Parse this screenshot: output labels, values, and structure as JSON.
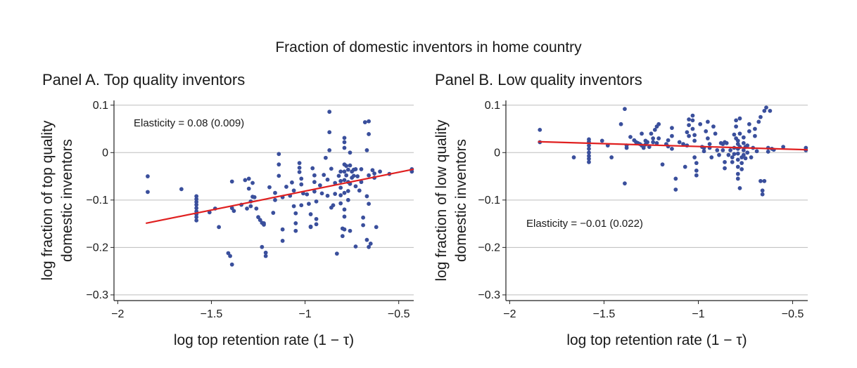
{
  "figure_title": "Fraction of domestic inventors in home country",
  "colors": {
    "points": "#3a4f9c",
    "fit_line": "#e02020",
    "grid": "#bdbdbd",
    "axis": "#222222"
  },
  "chart_data": [
    {
      "type": "scatter",
      "title": "Panel A. Top quality inventors",
      "xlabel": "log top retention rate (1 − τ)",
      "ylabel_lines": [
        "log fraction of top quality",
        "domestic inventors"
      ],
      "xlim": [
        -2.02,
        -0.42
      ],
      "ylim": [
        -0.312,
        0.11
      ],
      "xticks": [
        -2,
        -1.5,
        -1,
        -0.5
      ],
      "xtick_labels": [
        "−2",
        "−1.5",
        "−1",
        "−0.5"
      ],
      "yticks": [
        0.1,
        0,
        -0.1,
        -0.2,
        -0.3
      ],
      "ytick_labels": [
        "0.1",
        "0",
        "−0.1",
        "−0.2",
        "−0.3"
      ],
      "grid": "horizontal",
      "annotation": "Elasticity = 0.08 (0.009)",
      "annotation_pos": "top-left",
      "fit_line": {
        "x": [
          -1.85,
          -0.42
        ],
        "y": [
          -0.149,
          -0.035
        ]
      },
      "points": [
        [
          -1.84,
          -0.05
        ],
        [
          -1.84,
          -0.083
        ],
        [
          -1.66,
          -0.077
        ],
        [
          -1.58,
          -0.092
        ],
        [
          -1.58,
          -0.098
        ],
        [
          -1.58,
          -0.104
        ],
        [
          -1.58,
          -0.11
        ],
        [
          -1.58,
          -0.117
        ],
        [
          -1.58,
          -0.124
        ],
        [
          -1.58,
          -0.13
        ],
        [
          -1.58,
          -0.136
        ],
        [
          -1.58,
          -0.143
        ],
        [
          -1.51,
          -0.126
        ],
        [
          -1.48,
          -0.118
        ],
        [
          -1.46,
          -0.157
        ],
        [
          -1.41,
          -0.212
        ],
        [
          -1.4,
          -0.218
        ],
        [
          -1.39,
          -0.236
        ],
        [
          -1.39,
          -0.061
        ],
        [
          -1.39,
          -0.117
        ],
        [
          -1.38,
          -0.123
        ],
        [
          -1.34,
          -0.11
        ],
        [
          -1.32,
          -0.058
        ],
        [
          -1.3,
          -0.055
        ],
        [
          -1.3,
          -0.076
        ],
        [
          -1.31,
          -0.118
        ],
        [
          -1.29,
          -0.103
        ],
        [
          -1.29,
          -0.113
        ],
        [
          -1.28,
          -0.064
        ],
        [
          -1.28,
          -0.093
        ],
        [
          -1.27,
          -0.094
        ],
        [
          -1.26,
          -0.118
        ],
        [
          -1.25,
          -0.136
        ],
        [
          -1.24,
          -0.142
        ],
        [
          -1.23,
          -0.148
        ],
        [
          -1.22,
          -0.149
        ],
        [
          -1.22,
          -0.152
        ],
        [
          -1.23,
          -0.199
        ],
        [
          -1.21,
          -0.211
        ],
        [
          -1.21,
          -0.218
        ],
        [
          -1.19,
          -0.073
        ],
        [
          -1.17,
          -0.127
        ],
        [
          -1.16,
          -0.1
        ],
        [
          -1.16,
          -0.085
        ],
        [
          -1.14,
          -0.025
        ],
        [
          -1.14,
          -0.049
        ],
        [
          -1.14,
          -0.003
        ],
        [
          -1.12,
          -0.094
        ],
        [
          -1.12,
          -0.162
        ],
        [
          -1.12,
          -0.186
        ],
        [
          -1.1,
          -0.072
        ],
        [
          -1.08,
          -0.091
        ],
        [
          -1.07,
          -0.063
        ],
        [
          -1.06,
          -0.08
        ],
        [
          -1.06,
          -0.113
        ],
        [
          -1.05,
          -0.128
        ],
        [
          -1.05,
          -0.149
        ],
        [
          -1.05,
          -0.165
        ],
        [
          -1.03,
          -0.022
        ],
        [
          -1.03,
          -0.032
        ],
        [
          -1.03,
          -0.041
        ],
        [
          -1.02,
          -0.055
        ],
        [
          -1.02,
          -0.067
        ],
        [
          -1.01,
          -0.086
        ],
        [
          -1.02,
          -0.111
        ],
        [
          -0.99,
          -0.088
        ],
        [
          -0.98,
          -0.108
        ],
        [
          -0.97,
          -0.13
        ],
        [
          -0.97,
          -0.156
        ],
        [
          -0.97,
          -0.157
        ],
        [
          -0.96,
          -0.033
        ],
        [
          -0.95,
          -0.048
        ],
        [
          -0.95,
          -0.062
        ],
        [
          -0.95,
          -0.082
        ],
        [
          -0.94,
          -0.103
        ],
        [
          -0.94,
          -0.14
        ],
        [
          -0.94,
          -0.151
        ],
        [
          -0.92,
          -0.069
        ],
        [
          -0.91,
          -0.086
        ],
        [
          -0.9,
          -0.047
        ],
        [
          -0.89,
          -0.011
        ],
        [
          -0.88,
          -0.057
        ],
        [
          -0.88,
          -0.091
        ],
        [
          -0.87,
          0.086
        ],
        [
          -0.87,
          0.043
        ],
        [
          -0.87,
          0.005
        ],
        [
          -0.86,
          -0.034
        ],
        [
          -0.86,
          -0.116
        ],
        [
          -0.85,
          -0.111
        ],
        [
          -0.84,
          -0.064
        ],
        [
          -0.84,
          -0.087
        ],
        [
          -0.83,
          -0.213
        ],
        [
          -0.82,
          -0.049
        ],
        [
          -0.81,
          -0.04
        ],
        [
          -0.81,
          -0.06
        ],
        [
          -0.81,
          -0.074
        ],
        [
          -0.81,
          -0.09
        ],
        [
          -0.81,
          -0.107
        ],
        [
          -0.8,
          -0.16
        ],
        [
          -0.8,
          -0.176
        ],
        [
          -0.79,
          0.031
        ],
        [
          -0.79,
          0.022
        ],
        [
          -0.79,
          0.01
        ],
        [
          -0.79,
          -0.025
        ],
        [
          -0.79,
          -0.04
        ],
        [
          -0.79,
          -0.058
        ],
        [
          -0.79,
          -0.085
        ],
        [
          -0.79,
          -0.12
        ],
        [
          -0.79,
          -0.135
        ],
        [
          -0.79,
          -0.162
        ],
        [
          -0.78,
          -0.028
        ],
        [
          -0.78,
          -0.048
        ],
        [
          -0.77,
          -0.036
        ],
        [
          -0.77,
          -0.062
        ],
        [
          -0.77,
          -0.081
        ],
        [
          -0.77,
          -0.1
        ],
        [
          -0.76,
          -0.027
        ],
        [
          -0.76,
          0.0
        ],
        [
          -0.76,
          -0.066
        ],
        [
          -0.76,
          -0.165
        ],
        [
          -0.75,
          -0.04
        ],
        [
          -0.75,
          -0.053
        ],
        [
          -0.74,
          -0.036
        ],
        [
          -0.74,
          -0.049
        ],
        [
          -0.73,
          -0.035
        ],
        [
          -0.73,
          -0.071
        ],
        [
          -0.73,
          -0.198
        ],
        [
          -0.72,
          -0.05
        ],
        [
          -0.71,
          -0.08
        ],
        [
          -0.7,
          -0.035
        ],
        [
          -0.7,
          -0.062
        ],
        [
          -0.69,
          -0.137
        ],
        [
          -0.69,
          -0.153
        ],
        [
          -0.68,
          0.064
        ],
        [
          -0.67,
          0.005
        ],
        [
          -0.67,
          -0.092
        ],
        [
          -0.66,
          0.066
        ],
        [
          -0.66,
          0.039
        ],
        [
          -0.66,
          -0.048
        ],
        [
          -0.66,
          -0.108
        ],
        [
          -0.67,
          -0.184
        ],
        [
          -0.66,
          -0.199
        ],
        [
          -0.65,
          -0.192
        ],
        [
          -0.64,
          -0.037
        ],
        [
          -0.63,
          -0.044
        ],
        [
          -0.63,
          -0.053
        ],
        [
          -0.62,
          -0.157
        ],
        [
          -0.6,
          -0.04
        ],
        [
          -0.55,
          -0.045
        ],
        [
          -0.43,
          -0.035
        ],
        [
          -0.43,
          -0.04
        ]
      ]
    },
    {
      "type": "scatter",
      "title": "Panel B. Low quality inventors",
      "xlabel": "log top retention rate (1 − τ)",
      "ylabel_lines": [
        "log fraction of low quality",
        "domestic inventors"
      ],
      "xlim": [
        -2.02,
        -0.42
      ],
      "ylim": [
        -0.312,
        0.11
      ],
      "xticks": [
        -2,
        -1.5,
        -1,
        -0.5
      ],
      "xtick_labels": [
        "−2",
        "−1.5",
        "−1",
        "−0.5"
      ],
      "yticks": [
        0.1,
        0,
        -0.1,
        -0.2,
        -0.3
      ],
      "ytick_labels": [
        "0.1",
        "0",
        "−0.1",
        "−0.2",
        "−0.3"
      ],
      "grid": "horizontal",
      "annotation": "Elasticity = −0.01 (0.022)",
      "annotation_pos": "lower-left",
      "fit_line": {
        "x": [
          -1.85,
          -0.42
        ],
        "y": [
          0.023,
          0.006
        ]
      },
      "points": [
        [
          -1.84,
          0.048
        ],
        [
          -1.84,
          0.022
        ],
        [
          -1.66,
          -0.01
        ],
        [
          -1.58,
          0.028
        ],
        [
          -1.58,
          0.023
        ],
        [
          -1.58,
          0.015
        ],
        [
          -1.58,
          0.008
        ],
        [
          -1.58,
          0.0
        ],
        [
          -1.58,
          -0.007
        ],
        [
          -1.58,
          -0.013
        ],
        [
          -1.58,
          -0.02
        ],
        [
          -1.51,
          0.025
        ],
        [
          -1.48,
          0.015
        ],
        [
          -1.46,
          -0.01
        ],
        [
          -1.41,
          0.06
        ],
        [
          -1.39,
          0.092
        ],
        [
          -1.38,
          0.015
        ],
        [
          -1.39,
          -0.065
        ],
        [
          -1.38,
          0.01
        ],
        [
          -1.36,
          0.033
        ],
        [
          -1.34,
          0.026
        ],
        [
          -1.33,
          0.022
        ],
        [
          -1.32,
          0.02
        ],
        [
          -1.31,
          0.018
        ],
        [
          -1.3,
          0.04
        ],
        [
          -1.3,
          0.015
        ],
        [
          -1.29,
          0.01
        ],
        [
          -1.28,
          0.025
        ],
        [
          -1.28,
          0.017
        ],
        [
          -1.27,
          0.022
        ],
        [
          -1.26,
          0.012
        ],
        [
          -1.25,
          0.04
        ],
        [
          -1.24,
          0.03
        ],
        [
          -1.24,
          0.022
        ],
        [
          -1.23,
          0.048
        ],
        [
          -1.22,
          0.055
        ],
        [
          -1.22,
          0.02
        ],
        [
          -1.21,
          0.06
        ],
        [
          -1.21,
          0.03
        ],
        [
          -1.19,
          -0.025
        ],
        [
          -1.17,
          0.018
        ],
        [
          -1.16,
          0.026
        ],
        [
          -1.16,
          0.013
        ],
        [
          -1.14,
          0.052
        ],
        [
          -1.14,
          0.035
        ],
        [
          -1.14,
          0.008
        ],
        [
          -1.12,
          -0.055
        ],
        [
          -1.12,
          -0.078
        ],
        [
          -1.1,
          0.022
        ],
        [
          -1.08,
          0.018
        ],
        [
          -1.07,
          -0.03
        ],
        [
          -1.06,
          0.043
        ],
        [
          -1.06,
          0.015
        ],
        [
          -1.05,
          0.07
        ],
        [
          -1.05,
          0.058
        ],
        [
          -1.05,
          0.035
        ],
        [
          -1.03,
          0.078
        ],
        [
          -1.03,
          0.068
        ],
        [
          -1.03,
          0.05
        ],
        [
          -1.02,
          0.037
        ],
        [
          -1.02,
          0.025
        ],
        [
          -1.02,
          -0.01
        ],
        [
          -1.01,
          -0.022
        ],
        [
          -1.01,
          -0.038
        ],
        [
          -1.01,
          -0.048
        ],
        [
          -0.99,
          0.06
        ],
        [
          -0.98,
          0.012
        ],
        [
          -0.97,
          0.01
        ],
        [
          -0.97,
          0.003
        ],
        [
          -0.96,
          0.045
        ],
        [
          -0.95,
          0.065
        ],
        [
          -0.95,
          0.03
        ],
        [
          -0.94,
          0.018
        ],
        [
          -0.94,
          0.01
        ],
        [
          -0.93,
          -0.01
        ],
        [
          -0.92,
          0.055
        ],
        [
          -0.91,
          0.04
        ],
        [
          -0.9,
          0.005
        ],
        [
          -0.89,
          -0.005
        ],
        [
          -0.88,
          0.02
        ],
        [
          -0.87,
          0.018
        ],
        [
          -0.87,
          0.005
        ],
        [
          -0.86,
          0.022
        ],
        [
          -0.86,
          -0.02
        ],
        [
          -0.86,
          -0.033
        ],
        [
          -0.85,
          0.02
        ],
        [
          -0.84,
          -0.005
        ],
        [
          -0.83,
          0.005
        ],
        [
          -0.82,
          -0.01
        ],
        [
          -0.82,
          -0.02
        ],
        [
          -0.81,
          0.038
        ],
        [
          -0.81,
          0.01
        ],
        [
          -0.81,
          -0.003
        ],
        [
          -0.8,
          0.068
        ],
        [
          -0.8,
          0.055
        ],
        [
          -0.8,
          0.03
        ],
        [
          -0.79,
          0.025
        ],
        [
          -0.79,
          0.018
        ],
        [
          -0.79,
          0.008
        ],
        [
          -0.79,
          -0.002
        ],
        [
          -0.79,
          -0.015
        ],
        [
          -0.79,
          -0.03
        ],
        [
          -0.79,
          -0.045
        ],
        [
          -0.79,
          -0.055
        ],
        [
          -0.78,
          -0.075
        ],
        [
          -0.78,
          0.072
        ],
        [
          -0.78,
          0.04
        ],
        [
          -0.78,
          0.012
        ],
        [
          -0.77,
          -0.01
        ],
        [
          -0.77,
          -0.022
        ],
        [
          -0.77,
          -0.035
        ],
        [
          -0.76,
          0.032
        ],
        [
          -0.76,
          0.02
        ],
        [
          -0.76,
          0.005
        ],
        [
          -0.76,
          -0.005
        ],
        [
          -0.75,
          0.012
        ],
        [
          -0.75,
          -0.012
        ],
        [
          -0.74,
          0.015
        ],
        [
          -0.74,
          0.0
        ],
        [
          -0.73,
          0.06
        ],
        [
          -0.73,
          0.045
        ],
        [
          -0.72,
          -0.01
        ],
        [
          -0.71,
          0.01
        ],
        [
          -0.7,
          0.05
        ],
        [
          -0.7,
          0.035
        ],
        [
          -0.69,
          0.003
        ],
        [
          -0.68,
          0.065
        ],
        [
          -0.67,
          0.075
        ],
        [
          -0.67,
          -0.06
        ],
        [
          -0.66,
          -0.088
        ],
        [
          -0.66,
          -0.08
        ],
        [
          -0.65,
          0.088
        ],
        [
          -0.65,
          -0.06
        ],
        [
          -0.64,
          0.095
        ],
        [
          -0.63,
          0.01
        ],
        [
          -0.63,
          0.002
        ],
        [
          -0.62,
          0.088
        ],
        [
          -0.61,
          0.008
        ],
        [
          -0.6,
          0.006
        ],
        [
          -0.55,
          0.012
        ],
        [
          -0.43,
          0.01
        ],
        [
          -0.43,
          0.005
        ]
      ]
    }
  ]
}
